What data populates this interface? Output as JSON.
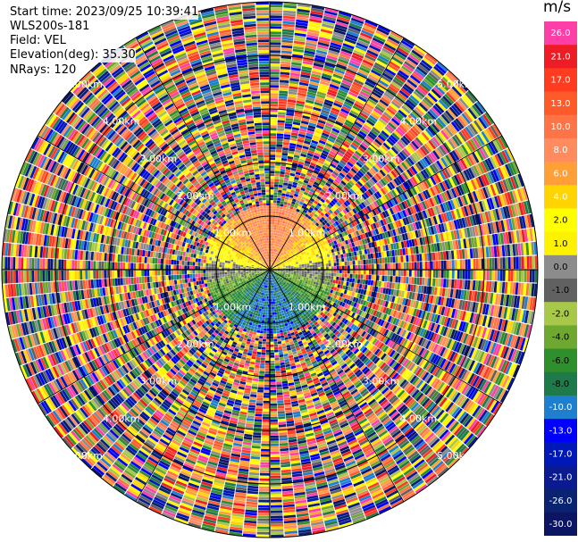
{
  "header": {
    "start_time": "Start time: 2023/09/25 10:39:41",
    "instrument": "WLS200s-181",
    "field": "Field: VEL",
    "elevation": "Elevation(deg): 35.30",
    "nrays": "NRays: 120"
  },
  "chart_data": {
    "type": "heatmap",
    "projection": "polar",
    "field": "VEL",
    "units": "m/s",
    "max_range_km": 5.0,
    "range_rings_km": [
      1,
      2,
      3,
      4,
      5
    ],
    "range_ring_labels": [
      "1.00km",
      "2.00km",
      "3.00km",
      "4.00km",
      "5.00km"
    ],
    "azimuth_lines_deg": [
      0,
      30,
      60,
      90,
      120,
      150,
      180,
      210,
      240,
      270,
      300,
      330
    ],
    "valid_data_range_km": 1.2,
    "pattern": "Coherent velocity field within ~1.2 km (positive/orange north, negative/blue south, near-zero grey band east-west); noise beyond.",
    "colorbar": {
      "title": "m/s",
      "labels": [
        "26.0",
        "21.0",
        "17.0",
        "13.0",
        "10.0",
        "8.0",
        "6.0",
        "4.0",
        "2.0",
        "1.0",
        "0.0",
        "-1.0",
        "-2.0",
        "-4.0",
        "-6.0",
        "-8.0",
        "-10.0",
        "-13.0",
        "-17.0",
        "-21.0",
        "-26.0",
        "-30.0"
      ],
      "colors": [
        "#ff3fa8",
        "#ee1c25",
        "#ff3b20",
        "#ff5a2a",
        "#ff7446",
        "#ff8b5e",
        "#ff9f37",
        "#ffd400",
        "#ffff00",
        "#fff200",
        "#8c8c8c",
        "#616161",
        "#a8c84a",
        "#6fa830",
        "#2f8f2c",
        "#1f7a4a",
        "#1e7fd0",
        "#0000ff",
        "#0018b8",
        "#0a1a90",
        "#0a2370",
        "#0b1561"
      ]
    }
  }
}
